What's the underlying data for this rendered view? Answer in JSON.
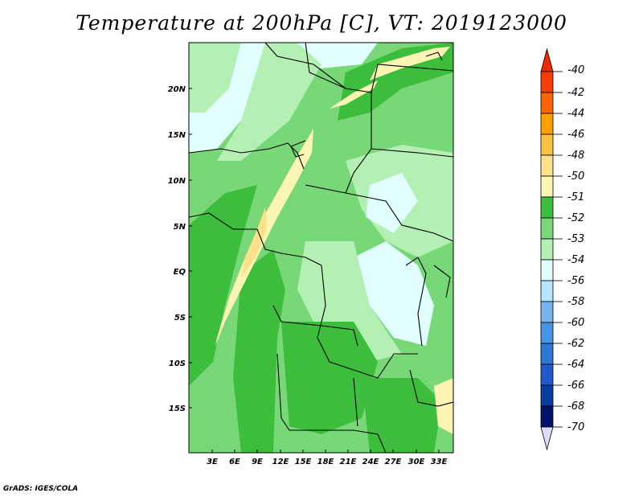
{
  "title": "Temperature at 200hPa [C], VT: 2019123000",
  "credit": "GrADS: IGES/COLA",
  "map": {
    "lat_labels": [
      "20N",
      "15N",
      "10N",
      "5N",
      "EQ",
      "5S",
      "10S",
      "15S"
    ],
    "lon_labels": [
      "3E",
      "6E",
      "9E",
      "12E",
      "15E",
      "18E",
      "21E",
      "24E",
      "27E",
      "30E",
      "33E"
    ]
  },
  "legend": {
    "levels": [
      {
        "label": "-40",
        "color": "#f02800"
      },
      {
        "label": "-42",
        "color": "#fa3c00"
      },
      {
        "label": "-44",
        "color": "#ff6400"
      },
      {
        "label": "-46",
        "color": "#ffa000"
      },
      {
        "label": "-48",
        "color": "#fcc040"
      },
      {
        "label": "-50",
        "color": "#fde08a"
      },
      {
        "label": "-51",
        "color": "#fcf5b4"
      },
      {
        "label": "-52",
        "color": "#3cbe3c"
      },
      {
        "label": "-53",
        "color": "#78d878"
      },
      {
        "label": "-54",
        "color": "#b4f0b4"
      },
      {
        "label": "-56",
        "color": "#e1ffff"
      },
      {
        "label": "-58",
        "color": "#b4e6ff"
      },
      {
        "label": "-60",
        "color": "#78b4f0"
      },
      {
        "label": "-62",
        "color": "#4696e6"
      },
      {
        "label": "-64",
        "color": "#2d78d2"
      },
      {
        "label": "-66",
        "color": "#1e5ac8"
      },
      {
        "label": "-68",
        "color": "#0a3ca0"
      },
      {
        "label": "-70",
        "color": "#00136e"
      }
    ],
    "low_end_color": "#dcdcff"
  },
  "colors": {
    "land_52": "#3cbe3c",
    "land_53": "#78d878",
    "land_54": "#b4f0b4",
    "land_56": "#e1ffff",
    "land_51": "#fcf5b4",
    "land_50": "#fde08a"
  }
}
